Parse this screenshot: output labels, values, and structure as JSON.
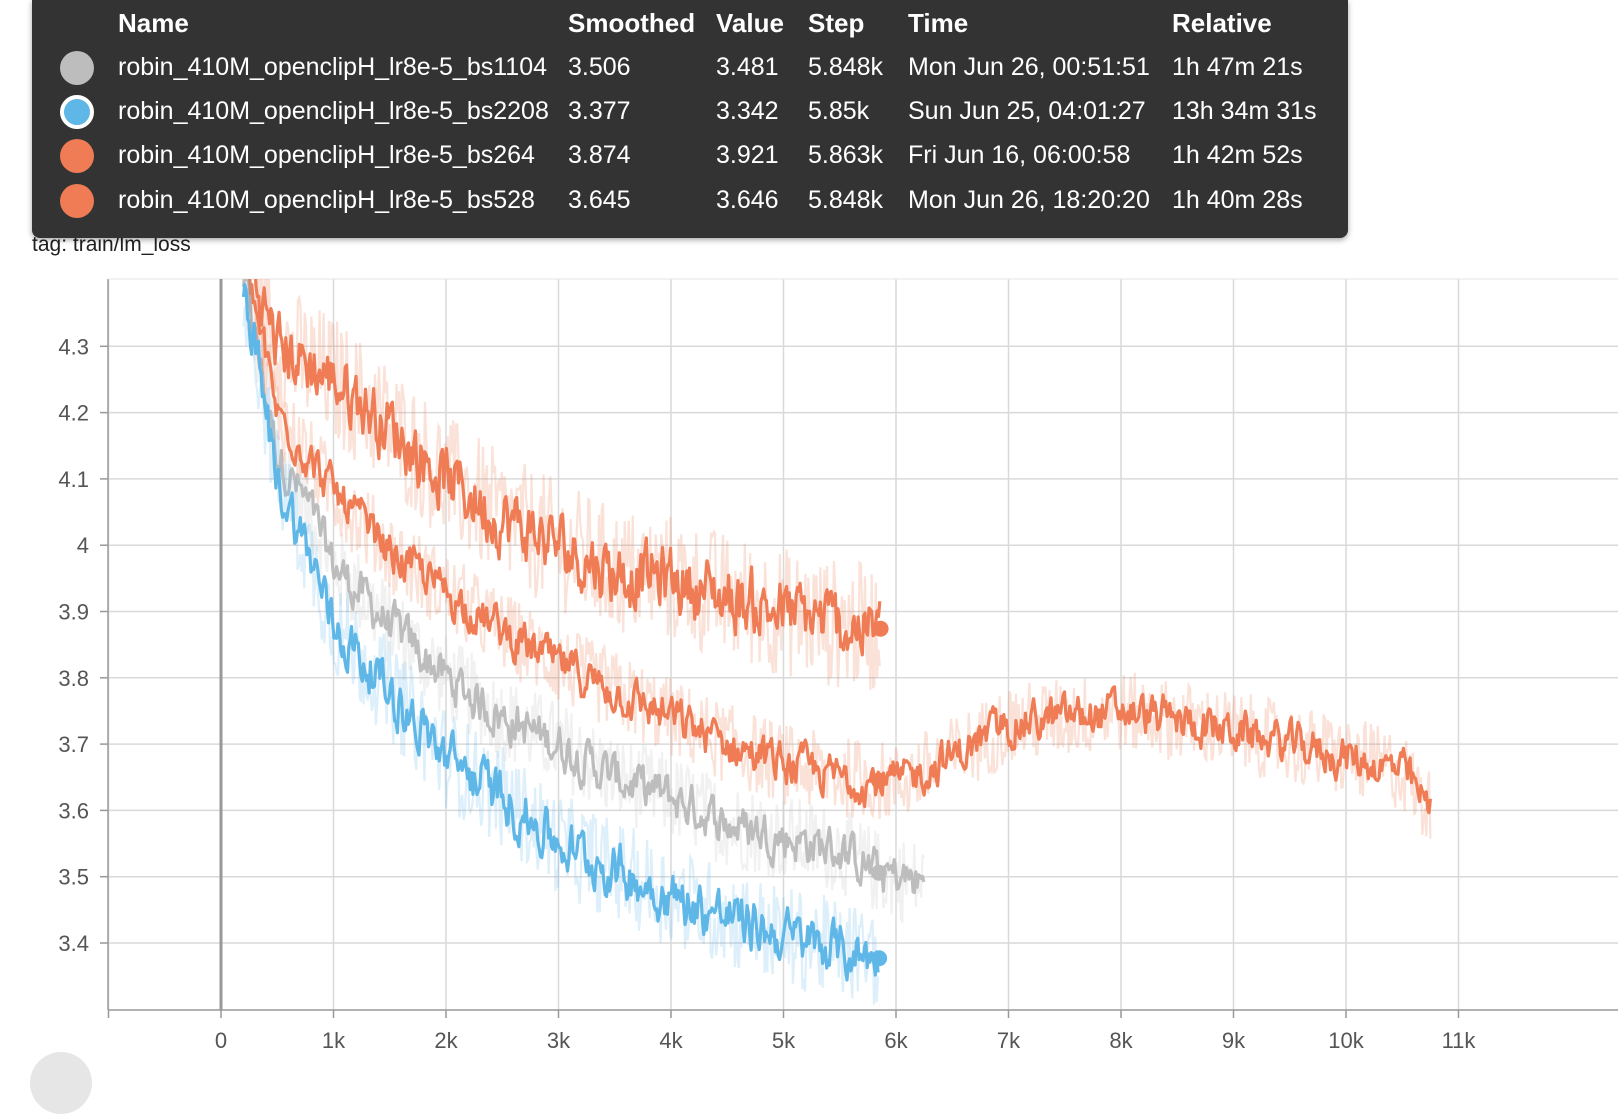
{
  "colors": {
    "gray": "#bdbdbd",
    "blue": "#5fb7e8",
    "orange": "#ef7c54",
    "tooltip_bg": "#333333"
  },
  "card": {
    "title": "lm_loss",
    "tag": "tag: train/lm_loss"
  },
  "tooltip": {
    "headers": {
      "name": "Name",
      "smoothed": "Smoothed",
      "value": "Value",
      "step": "Step",
      "time": "Time",
      "relative": "Relative"
    },
    "rows": [
      {
        "name": "robin_410M_openclipH_lr8e-5_bs1104",
        "smoothed": "3.506",
        "value": "3.481",
        "step": "5.848k",
        "time": "Mon Jun 26, 00:51:51",
        "relative": "1h 47m 21s",
        "color": "#bdbdbd",
        "selected": false
      },
      {
        "name": "robin_410M_openclipH_lr8e-5_bs2208",
        "smoothed": "3.377",
        "value": "3.342",
        "step": "5.85k",
        "time": "Sun Jun 25, 04:01:27",
        "relative": "13h 34m 31s",
        "color": "#5fb7e8",
        "selected": true
      },
      {
        "name": "robin_410M_openclipH_lr8e-5_bs264",
        "smoothed": "3.874",
        "value": "3.921",
        "step": "5.863k",
        "time": "Fri Jun 16, 06:00:58",
        "relative": "1h 42m 52s",
        "color": "#ef7c54",
        "selected": false
      },
      {
        "name": "robin_410M_openclipH_lr8e-5_bs528",
        "smoothed": "3.645",
        "value": "3.646",
        "step": "5.848k",
        "time": "Mon Jun 26, 18:20:20",
        "relative": "1h 40m 28s",
        "color": "#ef7c54",
        "selected": false
      }
    ]
  },
  "chart_data": {
    "type": "line",
    "title": "lm_loss",
    "subtitle": "tag: train/lm_loss",
    "xlabel": "",
    "ylabel": "",
    "x_ticks": [
      "0",
      "1k",
      "2k",
      "3k",
      "4k",
      "5k",
      "6k",
      "7k",
      "8k",
      "9k",
      "10k",
      "11k"
    ],
    "x_tick_values": [
      0,
      1000,
      2000,
      3000,
      4000,
      5000,
      6000,
      7000,
      8000,
      9000,
      10000,
      11000
    ],
    "y_ticks": [
      "3.4",
      "3.5",
      "3.6",
      "3.7",
      "3.8",
      "3.9",
      "4",
      "4.1",
      "4.2",
      "4.3"
    ],
    "y_tick_values": [
      3.4,
      3.5,
      3.6,
      3.7,
      3.8,
      3.9,
      4.0,
      4.1,
      4.2,
      4.3
    ],
    "xlim": [
      -1000,
      12000
    ],
    "ylim": [
      3.3,
      4.4
    ],
    "grid": true,
    "series": [
      {
        "name": "robin_410M_openclipH_lr8e-5_bs1104",
        "color": "#bdbdbd",
        "x": [
          200,
          500,
          800,
          1000,
          1500,
          2000,
          2500,
          3000,
          3500,
          4000,
          4500,
          5000,
          5500,
          5848,
          6250
        ],
        "y": [
          4.4,
          4.14,
          4.05,
          3.97,
          3.88,
          3.8,
          3.74,
          3.7,
          3.65,
          3.62,
          3.58,
          3.56,
          3.54,
          3.506,
          3.49
        ],
        "last_point": {
          "x": 5848,
          "y": 3.506
        }
      },
      {
        "name": "robin_410M_openclipH_lr8e-5_bs2208",
        "color": "#5fb7e8",
        "x": [
          200,
          500,
          800,
          1000,
          1500,
          2000,
          2500,
          3000,
          3500,
          4000,
          4500,
          5000,
          5500,
          5850
        ],
        "y": [
          4.4,
          4.1,
          3.98,
          3.88,
          3.78,
          3.68,
          3.62,
          3.55,
          3.51,
          3.47,
          3.44,
          3.41,
          3.39,
          3.377
        ],
        "last_point": {
          "x": 5850,
          "y": 3.377
        }
      },
      {
        "name": "robin_410M_openclipH_lr8e-5_bs264",
        "color": "#ef7c54",
        "x": [
          300,
          500,
          1000,
          1500,
          2000,
          2500,
          3000,
          3500,
          4000,
          4500,
          5000,
          5500,
          5863
        ],
        "y": [
          4.4,
          4.3,
          4.25,
          4.18,
          4.1,
          4.04,
          4.0,
          3.96,
          3.95,
          3.92,
          3.9,
          3.88,
          3.874
        ],
        "last_point": {
          "x": 5863,
          "y": 3.874
        }
      },
      {
        "name": "robin_410M_openclipH_lr8e-5_bs528",
        "color": "#ef7c54",
        "x": [
          250,
          500,
          1000,
          1500,
          2000,
          2500,
          3000,
          3500,
          4000,
          4500,
          5000,
          5500,
          5848,
          6000,
          6500,
          7000,
          8000,
          9000,
          10000,
          10500,
          10750
        ],
        "y": [
          4.4,
          4.2,
          4.08,
          3.99,
          3.93,
          3.87,
          3.82,
          3.78,
          3.74,
          3.7,
          3.67,
          3.65,
          3.645,
          3.64,
          3.68,
          3.73,
          3.75,
          3.72,
          3.68,
          3.66,
          3.6
        ],
        "last_point": {
          "x": 5848,
          "y": 3.645
        }
      }
    ]
  }
}
